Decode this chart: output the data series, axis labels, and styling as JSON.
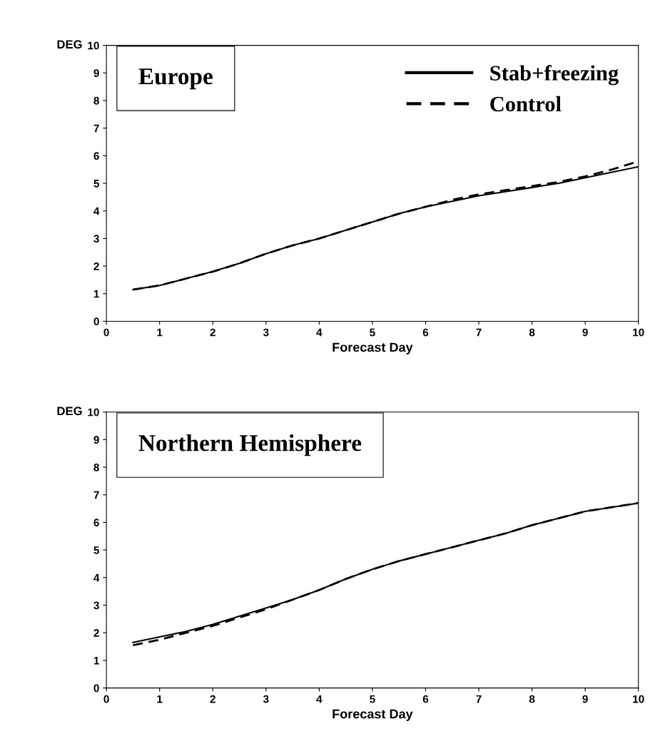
{
  "chart_data": [
    {
      "type": "line",
      "title": "Europe",
      "xlabel": "Forecast Day",
      "ylabel": "DEG",
      "xlim": [
        0,
        10
      ],
      "ylim": [
        0,
        10
      ],
      "xticks": [
        0,
        1,
        2,
        3,
        4,
        5,
        6,
        7,
        8,
        9,
        10
      ],
      "yticks": [
        0,
        1,
        2,
        3,
        4,
        5,
        6,
        7,
        8,
        9,
        10
      ],
      "grid": false,
      "legend": "top right",
      "x": [
        0.5,
        1,
        1.5,
        2,
        2.5,
        3,
        3.5,
        4,
        4.5,
        5,
        5.5,
        6,
        6.5,
        7,
        7.5,
        8,
        8.5,
        9,
        9.5,
        10
      ],
      "series": [
        {
          "name": "Stab+freezing",
          "color": "#000000",
          "line_style": "solid",
          "values": [
            1.15,
            1.3,
            1.55,
            1.8,
            2.1,
            2.45,
            2.75,
            3.0,
            3.3,
            3.6,
            3.9,
            4.15,
            4.35,
            4.55,
            4.7,
            4.85,
            5.0,
            5.2,
            5.4,
            5.6
          ]
        },
        {
          "name": "Control",
          "color": "#000000",
          "line_style": "dashed",
          "values": [
            1.15,
            1.3,
            1.55,
            1.8,
            2.1,
            2.45,
            2.75,
            3.0,
            3.3,
            3.6,
            3.9,
            4.15,
            4.4,
            4.6,
            4.75,
            4.9,
            5.05,
            5.25,
            5.5,
            5.8
          ]
        }
      ]
    },
    {
      "type": "line",
      "title": "Northern Hemisphere",
      "xlabel": "Forecast Day",
      "ylabel": "DEG",
      "xlim": [
        0,
        10
      ],
      "ylim": [
        0,
        10
      ],
      "xticks": [
        0,
        1,
        2,
        3,
        4,
        5,
        6,
        7,
        8,
        9,
        10
      ],
      "yticks": [
        0,
        1,
        2,
        3,
        4,
        5,
        6,
        7,
        8,
        9,
        10
      ],
      "grid": false,
      "x": [
        0.5,
        1,
        1.5,
        2,
        2.5,
        3,
        3.5,
        4,
        4.5,
        5,
        5.5,
        6,
        6.5,
        7,
        7.5,
        8,
        8.5,
        9,
        9.5,
        10
      ],
      "series": [
        {
          "color": "#000000",
          "line_style": "solid",
          "values": [
            1.65,
            1.85,
            2.05,
            2.3,
            2.6,
            2.9,
            3.2,
            3.55,
            3.95,
            4.3,
            4.6,
            4.85,
            5.1,
            5.35,
            5.6,
            5.9,
            6.15,
            6.4,
            6.55,
            6.7
          ]
        },
        {
          "color": "#000000",
          "line_style": "dashed",
          "values": [
            1.55,
            1.75,
            2.0,
            2.25,
            2.55,
            2.85,
            3.2,
            3.55,
            3.95,
            4.3,
            4.6,
            4.85,
            5.1,
            5.35,
            5.6,
            5.9,
            6.15,
            6.4,
            6.55,
            6.7
          ]
        }
      ]
    }
  ]
}
